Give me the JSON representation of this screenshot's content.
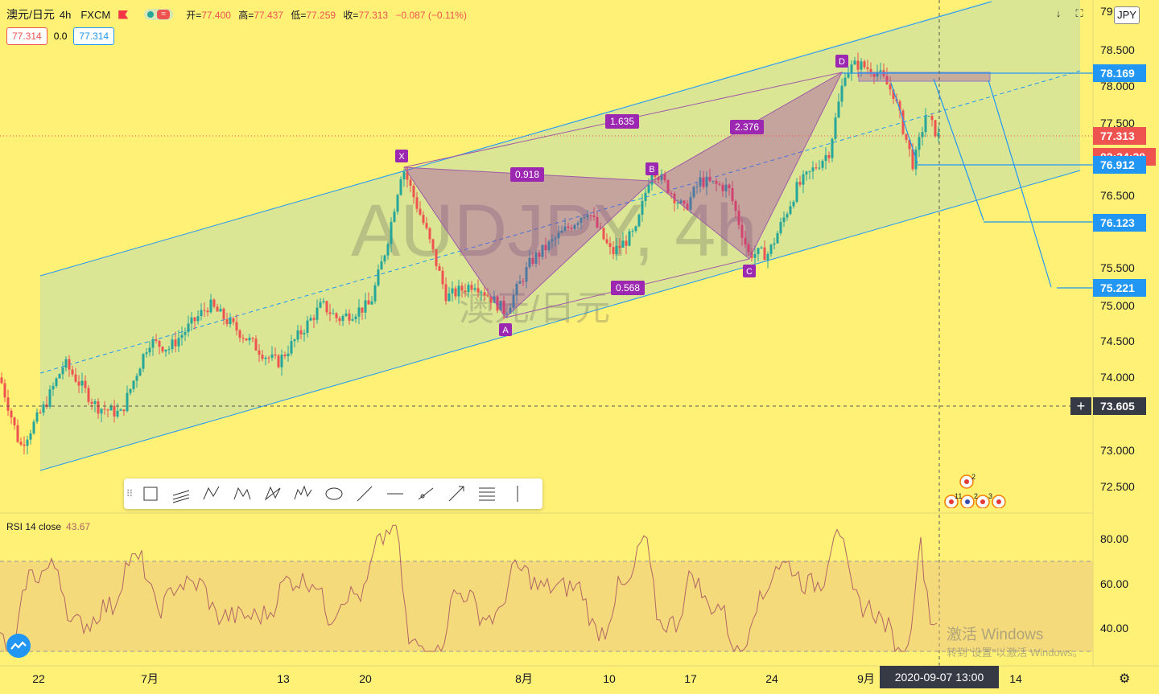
{
  "header": {
    "symbol": "澳元/日元",
    "interval": "4h",
    "exchange": "FXCM",
    "open_label": "开=",
    "open": "77.400",
    "high_label": "高=",
    "high": "77.437",
    "low_label": "低=",
    "low": "77.259",
    "close_label": "收=",
    "close": "77.313",
    "change": "−0.087 (−0.11%)"
  },
  "bid_ask": {
    "bid": "77.314",
    "spread": "0.0",
    "ask": "77.314"
  },
  "currency": "JPY",
  "watermark": {
    "main": "AUDJPY, 4h",
    "sub": "澳元/日元"
  },
  "price_axis": {
    "ticks": [
      "79",
      "78.500",
      "78.000",
      "77.500",
      "76.500",
      "75.500",
      "75.000",
      "74.500",
      "74.000",
      "73.000",
      "72.500"
    ],
    "labels": [
      {
        "text": "78.169",
        "bg": "#2196f3"
      },
      {
        "text": "77.313",
        "bg": "#ef5350"
      },
      {
        "text": "02:34:20",
        "bg": "#ef5350"
      },
      {
        "text": "76.912",
        "bg": "#2196f3"
      },
      {
        "text": "76.123",
        "bg": "#2196f3"
      },
      {
        "text": "75.221",
        "bg": "#2196f3"
      },
      {
        "text": "73.605",
        "bg": "#363a45"
      }
    ]
  },
  "time_axis": {
    "labels": [
      "22",
      "7月",
      "13",
      "20",
      "8月",
      "10",
      "17",
      "24",
      "9月",
      "14"
    ],
    "crosshair": "2020-09-07   13:00"
  },
  "pattern": {
    "points": [
      "X",
      "A",
      "B",
      "C",
      "D"
    ],
    "ratios": [
      "0.918",
      "0.568",
      "1.635",
      "2.376"
    ]
  },
  "rsi": {
    "label": "RSI 14 close",
    "value": "43.67",
    "ticks": [
      "80.00",
      "60.00",
      "40.00"
    ]
  },
  "events": [
    "11",
    "2",
    "2",
    "3"
  ],
  "drawing_tools": [
    "rectangle-tool",
    "channel-tool",
    "pattern-tool",
    "xabcd-tool",
    "abcd-tool",
    "elliott-tool",
    "ellipse-tool",
    "trendline-tool",
    "horizontal-line-tool",
    "ray-tool",
    "arrow-tool",
    "fib-tool",
    "vertical-line-tool"
  ],
  "windows_watermark": {
    "line1": "激活 Windows",
    "line2": "转到\"设置\"以激活 Windows。"
  },
  "colors": {
    "bg": "#fff176",
    "up": "#26a69a",
    "down": "#ef5350",
    "channel": "#2196f3",
    "pattern": "#9c27b0"
  }
}
